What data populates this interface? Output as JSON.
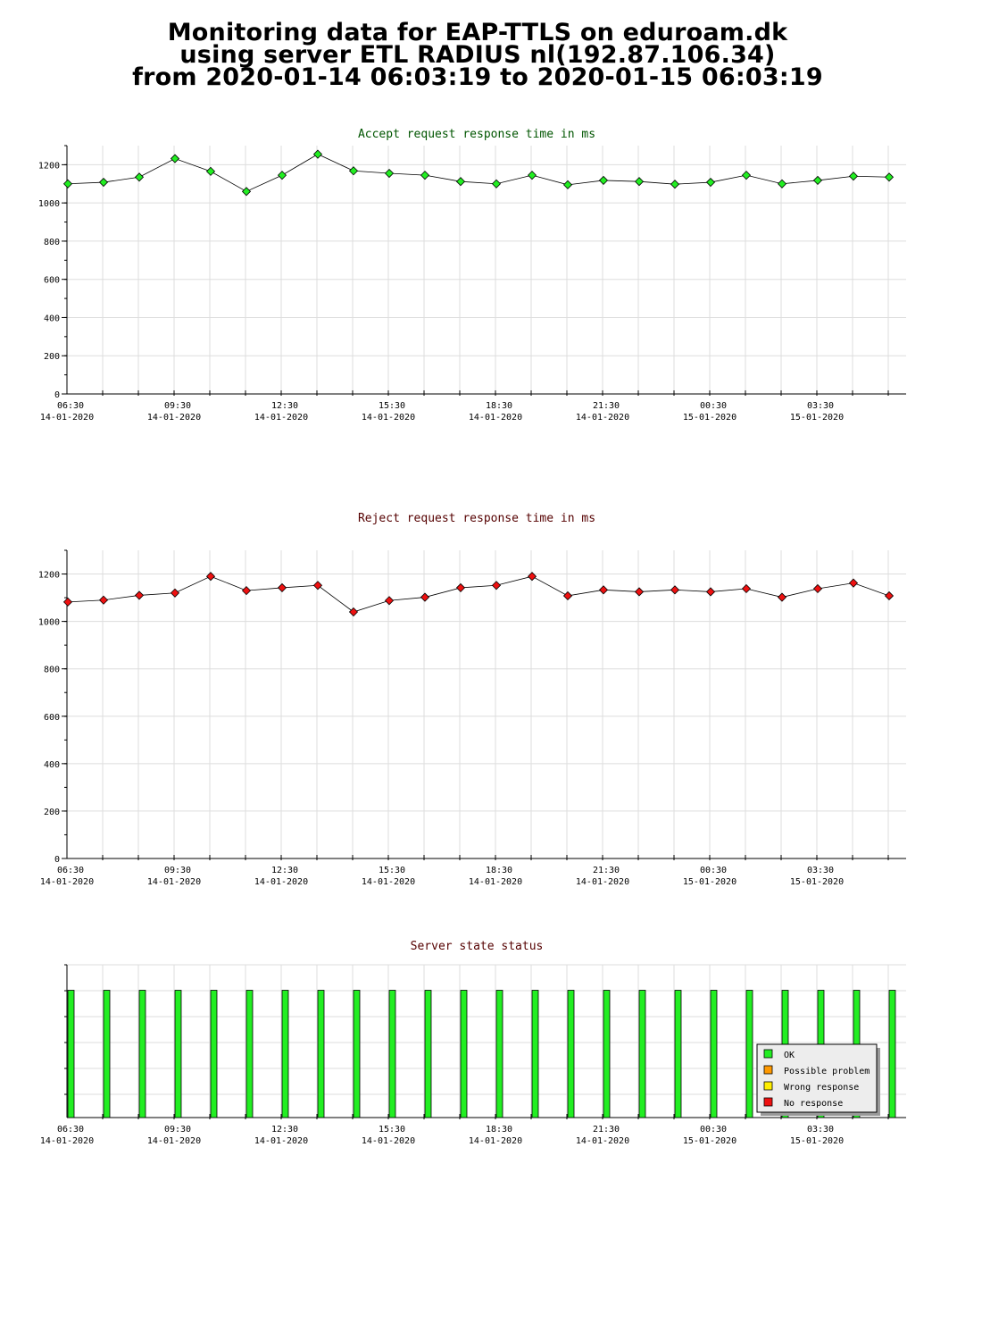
{
  "page_title": {
    "line1": "Monitoring data for EAP-TTLS on eduroam.dk",
    "line2": "using server ETL RADIUS nl(192.87.106.34)",
    "line3": "from 2020-01-14 06:03:19 to 2020-01-15 06:03:19"
  },
  "colors": {
    "accept_title": "#005500",
    "reject_title": "#550000",
    "status_title": "#550000",
    "accept_marker": "#22ee22",
    "reject_marker": "#ee1111",
    "ok_bar": "#22ee22",
    "grid": "#dddddd"
  },
  "x_tick_labels": [
    {
      "time": "06:30",
      "date": "14-01-2020"
    },
    {
      "time": "09:30",
      "date": "14-01-2020"
    },
    {
      "time": "12:30",
      "date": "14-01-2020"
    },
    {
      "time": "15:30",
      "date": "14-01-2020"
    },
    {
      "time": "18:30",
      "date": "14-01-2020"
    },
    {
      "time": "21:30",
      "date": "14-01-2020"
    },
    {
      "time": "00:30",
      "date": "15-01-2020"
    },
    {
      "time": "03:30",
      "date": "15-01-2020"
    }
  ],
  "chart_data": [
    {
      "type": "line",
      "title": "Accept request response time in ms",
      "ylim": [
        0,
        1300
      ],
      "yticks": [
        0,
        200,
        400,
        600,
        800,
        1000,
        1200
      ],
      "grid": true,
      "x": [
        "2020-01-14 06:30",
        "2020-01-14 07:30",
        "2020-01-14 08:30",
        "2020-01-14 09:30",
        "2020-01-14 10:30",
        "2020-01-14 11:30",
        "2020-01-14 12:30",
        "2020-01-14 13:30",
        "2020-01-14 14:30",
        "2020-01-14 15:30",
        "2020-01-14 16:30",
        "2020-01-14 17:30",
        "2020-01-14 18:30",
        "2020-01-14 19:30",
        "2020-01-14 20:30",
        "2020-01-14 21:30",
        "2020-01-14 22:30",
        "2020-01-14 23:30",
        "2020-01-15 00:30",
        "2020-01-15 01:30",
        "2020-01-15 02:30",
        "2020-01-15 03:30",
        "2020-01-15 04:30",
        "2020-01-15 05:30"
      ],
      "values": [
        1100,
        1108,
        1135,
        1232,
        1165,
        1060,
        1145,
        1255,
        1168,
        1155,
        1145,
        1112,
        1100,
        1145,
        1095,
        1118,
        1112,
        1098,
        1108,
        1145,
        1100,
        1118,
        1140,
        1135
      ]
    },
    {
      "type": "line",
      "title": "Reject request response time in ms",
      "ylim": [
        0,
        1300
      ],
      "yticks": [
        0,
        200,
        400,
        600,
        800,
        1000,
        1200
      ],
      "grid": true,
      "x": [
        "2020-01-14 06:30",
        "2020-01-14 07:30",
        "2020-01-14 08:30",
        "2020-01-14 09:30",
        "2020-01-14 10:30",
        "2020-01-14 11:30",
        "2020-01-14 12:30",
        "2020-01-14 13:30",
        "2020-01-14 14:30",
        "2020-01-14 15:30",
        "2020-01-14 16:30",
        "2020-01-14 17:30",
        "2020-01-14 18:30",
        "2020-01-14 19:30",
        "2020-01-14 20:30",
        "2020-01-14 21:30",
        "2020-01-14 22:30",
        "2020-01-14 23:30",
        "2020-01-15 00:30",
        "2020-01-15 01:30",
        "2020-01-15 02:30",
        "2020-01-15 03:30",
        "2020-01-15 04:30",
        "2020-01-15 05:30"
      ],
      "values": [
        1082,
        1090,
        1110,
        1120,
        1190,
        1130,
        1142,
        1152,
        1040,
        1088,
        1102,
        1142,
        1152,
        1190,
        1108,
        1133,
        1125,
        1133,
        1125,
        1138,
        1102,
        1138,
        1162,
        1108
      ]
    },
    {
      "type": "bar",
      "title": "Server state status",
      "ylim": [
        0,
        1.2
      ],
      "grid": true,
      "x": [
        "2020-01-14 06:30",
        "2020-01-14 07:30",
        "2020-01-14 08:30",
        "2020-01-14 09:30",
        "2020-01-14 10:30",
        "2020-01-14 11:30",
        "2020-01-14 12:30",
        "2020-01-14 13:30",
        "2020-01-14 14:30",
        "2020-01-14 15:30",
        "2020-01-14 16:30",
        "2020-01-14 17:30",
        "2020-01-14 18:30",
        "2020-01-14 19:30",
        "2020-01-14 20:30",
        "2020-01-14 21:30",
        "2020-01-14 22:30",
        "2020-01-14 23:30",
        "2020-01-15 00:30",
        "2020-01-15 01:30",
        "2020-01-15 02:30",
        "2020-01-15 03:30",
        "2020-01-15 04:30",
        "2020-01-15 05:30"
      ],
      "values": [
        1,
        1,
        1,
        1,
        1,
        1,
        1,
        1,
        1,
        1,
        1,
        1,
        1,
        1,
        1,
        1,
        1,
        1,
        1,
        1,
        1,
        1,
        1,
        1
      ],
      "states": [
        "OK",
        "OK",
        "OK",
        "OK",
        "OK",
        "OK",
        "OK",
        "OK",
        "OK",
        "OK",
        "OK",
        "OK",
        "OK",
        "OK",
        "OK",
        "OK",
        "OK",
        "OK",
        "OK",
        "OK",
        "OK",
        "OK",
        "OK",
        "OK"
      ],
      "legend_position": "bottom-right",
      "legend": [
        {
          "label": "OK",
          "color": "#22ee22"
        },
        {
          "label": "Possible problem",
          "color": "#ff9900"
        },
        {
          "label": "Wrong response",
          "color": "#ffee00"
        },
        {
          "label": "No response",
          "color": "#ee1111"
        }
      ]
    }
  ]
}
